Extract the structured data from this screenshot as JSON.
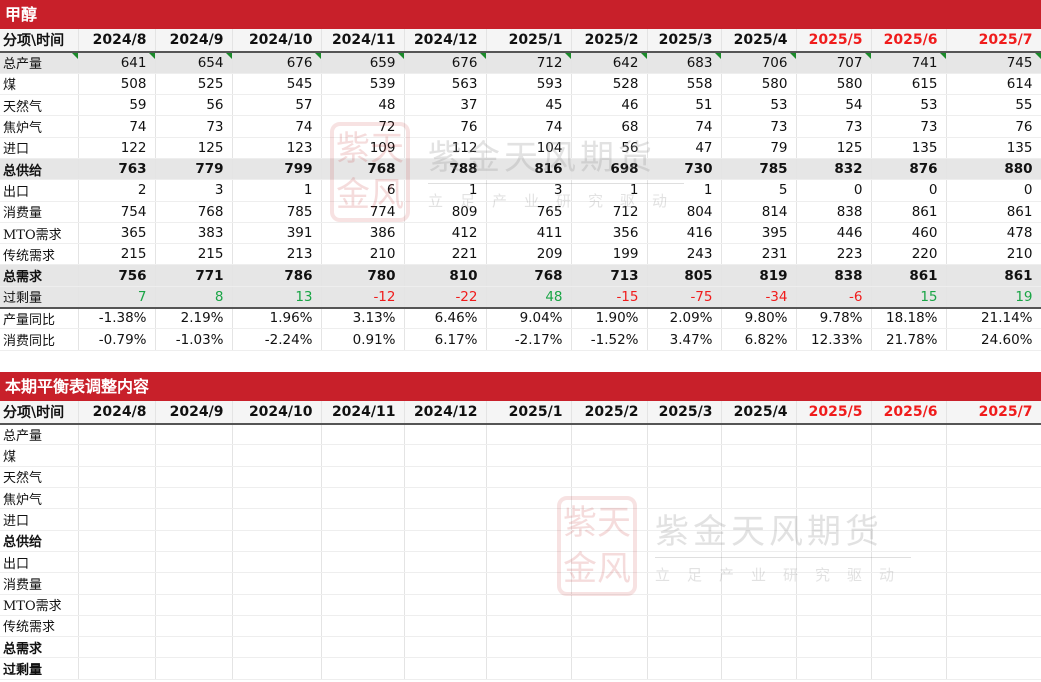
{
  "section1": {
    "title": "甲醇"
  },
  "section2": {
    "title": "本期平衡表调整内容"
  },
  "header_label": "分项\\时间",
  "months": [
    "2024/8",
    "2024/9",
    "2024/10",
    "2024/11",
    "2024/12",
    "2025/1",
    "2025/2",
    "2025/3",
    "2025/4",
    "2025/5",
    "2025/6",
    "2025/7"
  ],
  "forecast_months_color": "#f01c1c",
  "rows": [
    {
      "label": "总产量",
      "style": "grey",
      "values": [
        "641",
        "654",
        "676",
        "659",
        "676",
        "712",
        "642",
        "683",
        "706",
        "707",
        "741",
        "745"
      ]
    },
    {
      "label": "煤",
      "style": "",
      "values": [
        "508",
        "525",
        "545",
        "539",
        "563",
        "593",
        "528",
        "558",
        "580",
        "580",
        "615",
        "614"
      ]
    },
    {
      "label": "天然气",
      "style": "",
      "values": [
        "59",
        "56",
        "57",
        "48",
        "37",
        "45",
        "46",
        "51",
        "53",
        "54",
        "53",
        "55"
      ]
    },
    {
      "label": "焦炉气",
      "style": "",
      "values": [
        "74",
        "73",
        "74",
        "72",
        "76",
        "74",
        "68",
        "74",
        "73",
        "73",
        "73",
        "76"
      ]
    },
    {
      "label": "进口",
      "style": "",
      "values": [
        "122",
        "125",
        "123",
        "109",
        "112",
        "104",
        "56",
        "47",
        "79",
        "125",
        "135",
        "135"
      ]
    },
    {
      "label": "总供给",
      "style": "grey bold",
      "values": [
        "763",
        "779",
        "799",
        "768",
        "788",
        "816",
        "698",
        "730",
        "785",
        "832",
        "876",
        "880"
      ]
    },
    {
      "label": "出口",
      "style": "",
      "values": [
        "2",
        "3",
        "1",
        "6",
        "1",
        "3",
        "1",
        "1",
        "5",
        "0",
        "0",
        "0"
      ]
    },
    {
      "label": "消费量",
      "style": "",
      "values": [
        "754",
        "768",
        "785",
        "774",
        "809",
        "765",
        "712",
        "804",
        "814",
        "838",
        "861",
        "861"
      ]
    },
    {
      "label": "MTO需求",
      "style": "",
      "values": [
        "365",
        "383",
        "391",
        "386",
        "412",
        "411",
        "356",
        "416",
        "395",
        "446",
        "460",
        "478"
      ]
    },
    {
      "label": "传统需求",
      "style": "",
      "values": [
        "215",
        "215",
        "213",
        "210",
        "221",
        "209",
        "199",
        "243",
        "231",
        "223",
        "220",
        "210"
      ]
    },
    {
      "label": "总需求",
      "style": "grey bold",
      "values": [
        "756",
        "771",
        "786",
        "780",
        "810",
        "768",
        "713",
        "805",
        "819",
        "838",
        "861",
        "861"
      ]
    },
    {
      "label": "过剩量",
      "style": "grey last",
      "values": [
        "7",
        "8",
        "13",
        "-12",
        "-22",
        "48",
        "-15",
        "-75",
        "-34",
        "-6",
        "15",
        "19"
      ]
    },
    {
      "label": "产量同比",
      "style": "",
      "values": [
        "-1.38%",
        "2.19%",
        "1.96%",
        "3.13%",
        "6.46%",
        "9.04%",
        "1.90%",
        "2.09%",
        "9.80%",
        "9.78%",
        "18.18%",
        "21.14%"
      ]
    },
    {
      "label": "消费同比",
      "style": "",
      "values": [
        "-0.79%",
        "-1.03%",
        "-2.24%",
        "0.91%",
        "6.17%",
        "-2.17%",
        "-1.52%",
        "3.47%",
        "6.82%",
        "12.33%",
        "21.78%",
        "24.60%"
      ]
    }
  ],
  "adjust_rows": [
    "总产量",
    "煤",
    "天然气",
    "焦炉气",
    "进口",
    "总供给",
    "出口",
    "消费量",
    "MTO需求",
    "传统需求",
    "总需求",
    "过剩量"
  ],
  "adjust_bold": [
    "总供给",
    "总需求",
    "过剩量"
  ],
  "watermark": {
    "name": "紫金天风期货",
    "slogan": "立足产业研究驱动",
    "seal": "紫金天风"
  },
  "colors": {
    "title_bar": "#c8202a",
    "positive": "#1aa546",
    "negative": "#f01c1c"
  }
}
